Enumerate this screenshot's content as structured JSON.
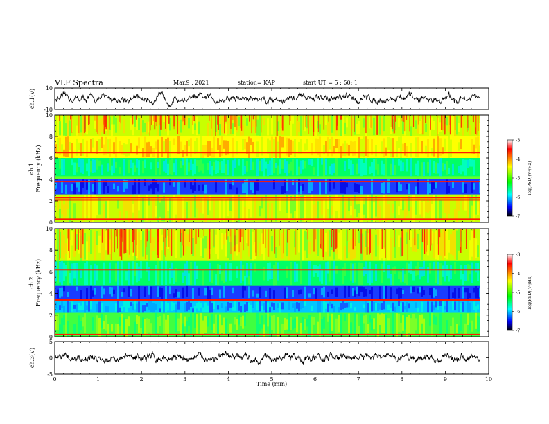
{
  "header": {
    "title": "VLF Spectra",
    "date": "Mar.9 , 2021",
    "station": "station= KAP",
    "start": "start UT =  5 : 50: 1"
  },
  "chart_data": [
    {
      "type": "line",
      "panel": "ch1-waveform",
      "ylabel": "ch.1(V)",
      "ylim": [
        -10,
        10
      ],
      "yticks": [
        "10",
        "-10"
      ],
      "x_range_min": [
        0,
        9.8
      ],
      "approx_mean": 0,
      "approx_amplitude": 4
    },
    {
      "type": "heatmap",
      "panel": "ch1-spectrogram",
      "ylabel": "ch.1\nFrequency (kHz)",
      "ylim": [
        0,
        10
      ],
      "yticks": [
        "0",
        "2",
        "4",
        "6",
        "8",
        "10"
      ],
      "x_range_min": [
        0,
        9.8
      ],
      "colorbar": {
        "label": "log(PSD)(V²/Hz)",
        "range": [
          -7,
          -3
        ],
        "ticks": [
          "-3",
          "-4",
          "-5",
          "-6",
          "-7"
        ]
      },
      "bands_khz": [
        {
          "from": 8.0,
          "to": 10.0,
          "level": "yellow-green with red streaks"
        },
        {
          "from": 6.0,
          "to": 8.0,
          "level": "yellow"
        },
        {
          "from": 4.3,
          "to": 6.0,
          "level": "green-cyan"
        },
        {
          "from": 2.6,
          "to": 4.0,
          "level": "blue"
        },
        {
          "from": 0.0,
          "to": 2.6,
          "level": "yellow-green"
        }
      ],
      "lines_khz": [
        6.5,
        3.8,
        2.3,
        2.1,
        0.3
      ]
    },
    {
      "type": "heatmap",
      "panel": "ch2-spectrogram",
      "ylabel": "ch.2\nFrequency (kHz)",
      "ylim": [
        0,
        10
      ],
      "yticks": [
        "0",
        "2",
        "4",
        "6",
        "8",
        "10"
      ],
      "x_range_min": [
        0,
        9.8
      ],
      "colorbar": {
        "label": "log(PSD)(V²/Hz)",
        "range": [
          -7,
          -3
        ],
        "ticks": [
          "-3",
          "-4",
          "-5",
          "-6",
          "-7"
        ]
      },
      "bands_khz": [
        {
          "from": 7.0,
          "to": 10.0,
          "level": "yellow-green with red streaks"
        },
        {
          "from": 4.7,
          "to": 7.0,
          "level": "green-cyan"
        },
        {
          "from": 3.5,
          "to": 4.7,
          "level": "blue"
        },
        {
          "from": 2.2,
          "to": 3.3,
          "level": "cyan-blue"
        },
        {
          "from": 0.0,
          "to": 2.2,
          "level": "green"
        }
      ],
      "lines_khz": [
        6.2,
        3.4,
        0.2
      ]
    },
    {
      "type": "line",
      "panel": "ch3-waveform",
      "ylabel": "ch.3(V)",
      "ylim": [
        -5,
        5
      ],
      "yticks": [
        "5",
        "0",
        "-5"
      ],
      "x_range_min": [
        0,
        9.8
      ],
      "approx_mean": 0,
      "approx_amplitude": 0.6
    }
  ],
  "xaxis": {
    "label": "Time (min)",
    "range": [
      0,
      10
    ],
    "ticks": [
      "0",
      "1",
      "2",
      "3",
      "4",
      "5",
      "6",
      "7",
      "8",
      "9",
      "10"
    ]
  },
  "colors": {
    "colormap": [
      "#ffffff",
      "#ff0000",
      "#ffff00",
      "#00ff00",
      "#00ffff",
      "#0000ff",
      "#000000"
    ]
  }
}
